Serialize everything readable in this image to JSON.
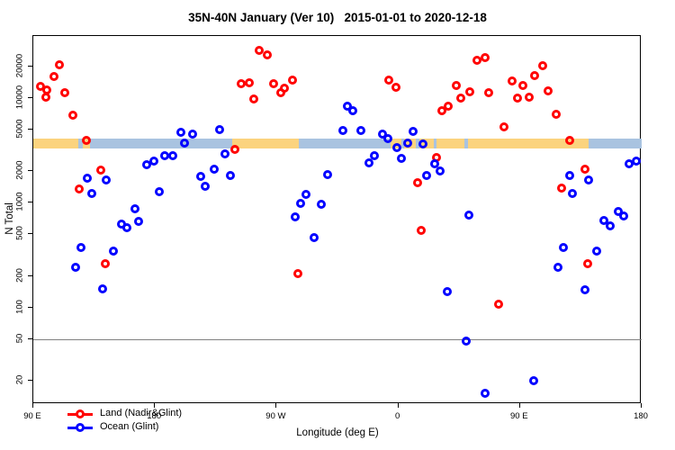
{
  "title": "35N-40N January (Ver 10)   2015-01-01 to 2020-12-18",
  "chart_data": {
    "type": "scatter",
    "title": "35N-40N January (Ver 10)   2015-01-01 to 2020-12-18",
    "xlabel": "Longitude (deg E)",
    "ylabel": "N Total",
    "x_axis": {
      "min": 90,
      "max": 540,
      "note": "longitude axis spans 450 deg eastward starting at 90E, wrapping through 180, 90W, 0, 90E to 180",
      "ticks": [
        {
          "value": 90,
          "label": "90 E"
        },
        {
          "value": 180,
          "label": "180"
        },
        {
          "value": 270,
          "label": "90 W"
        },
        {
          "value": 360,
          "label": "0"
        },
        {
          "value": 450,
          "label": "90 E"
        },
        {
          "value": 540,
          "label": "180"
        }
      ]
    },
    "y_axis": {
      "scale": "log",
      "ylim": [
        11.9,
        39200
      ],
      "ticks": [
        20,
        50,
        100,
        200,
        500,
        1000,
        2000,
        5000,
        10000,
        20000
      ]
    },
    "reference_line": {
      "y": 50,
      "color": "#808080"
    },
    "surface_strip": {
      "description": "land/ocean map strip drawn across plot near N=3400",
      "land_color": "#FBD37E",
      "ocean_color": "#A9C3E0",
      "segments": [
        {
          "type": "land",
          "from": 90,
          "to": 123
        },
        {
          "type": "ocean",
          "from": 123,
          "to": 126.5
        },
        {
          "type": "land",
          "from": 126.5,
          "to": 132
        },
        {
          "type": "ocean",
          "from": 132,
          "to": 237
        },
        {
          "type": "land",
          "from": 237,
          "to": 286.5
        },
        {
          "type": "ocean",
          "from": 286.5,
          "to": 354
        },
        {
          "type": "land",
          "from": 354,
          "to": 362
        },
        {
          "type": "ocean",
          "from": 362,
          "to": 364.5
        },
        {
          "type": "land",
          "from": 364.5,
          "to": 373
        },
        {
          "type": "ocean",
          "from": 373,
          "to": 375.5
        },
        {
          "type": "land",
          "from": 375.5,
          "to": 386
        },
        {
          "type": "ocean",
          "from": 386,
          "to": 388
        },
        {
          "type": "land",
          "from": 388,
          "to": 409
        },
        {
          "type": "ocean",
          "from": 409,
          "to": 411.5
        },
        {
          "type": "land",
          "from": 411.5,
          "to": 501
        },
        {
          "type": "ocean",
          "from": 501,
          "to": 540
        }
      ]
    },
    "series": [
      {
        "name": "Land (Nadir&Glint)",
        "color": "#FF0000",
        "points": [
          [
            109,
            21000
          ],
          [
            105,
            16100
          ],
          [
            95,
            12900
          ],
          [
            100,
            11900
          ],
          [
            99,
            10200
          ],
          [
            113,
            11300
          ],
          [
            119,
            6900
          ],
          [
            129,
            3950
          ],
          [
            140,
            2050
          ],
          [
            124,
            1360
          ],
          [
            143,
            260
          ],
          [
            257,
            28600
          ],
          [
            263,
            25900
          ],
          [
            244,
            13700
          ],
          [
            250,
            14000
          ],
          [
            268,
            13700
          ],
          [
            276,
            12400
          ],
          [
            273,
            11300
          ],
          [
            282,
            14900
          ],
          [
            253,
            9800
          ],
          [
            239,
            3240
          ],
          [
            286,
            210
          ],
          [
            374,
            1560
          ],
          [
            377,
            545
          ],
          [
            388,
            2700
          ],
          [
            392,
            7600
          ],
          [
            397,
            8400
          ],
          [
            403,
            13200
          ],
          [
            406,
            10000
          ],
          [
            413,
            11500
          ],
          [
            418,
            23000
          ],
          [
            424,
            24400
          ],
          [
            353,
            14900
          ],
          [
            358,
            12700
          ],
          [
            427,
            11300
          ],
          [
            434,
            108
          ],
          [
            438,
            5300
          ],
          [
            467,
            20500
          ],
          [
            461,
            16400
          ],
          [
            444,
            14600
          ],
          [
            452,
            13200
          ],
          [
            457,
            10200
          ],
          [
            448,
            10000
          ],
          [
            471,
            11700
          ],
          [
            477,
            7000
          ],
          [
            481,
            1380
          ],
          [
            487,
            3950
          ],
          [
            498,
            2100
          ],
          [
            500,
            260
          ]
        ]
      },
      {
        "name": "Ocean (Glint)",
        "color": "#0000FF",
        "points": [
          [
            199,
            4700
          ],
          [
            208,
            4500
          ],
          [
            202,
            3700
          ],
          [
            187,
            2820
          ],
          [
            193,
            2820
          ],
          [
            179,
            2500
          ],
          [
            174,
            2310
          ],
          [
            130,
            1720
          ],
          [
            144,
            1650
          ],
          [
            133,
            1230
          ],
          [
            183,
            1280
          ],
          [
            165,
            880
          ],
          [
            168,
            665
          ],
          [
            155,
            625
          ],
          [
            159,
            580
          ],
          [
            125,
            375
          ],
          [
            149,
            345
          ],
          [
            121,
            240
          ],
          [
            141,
            150
          ],
          [
            228,
            5000
          ],
          [
            232,
            2930
          ],
          [
            224,
            2100
          ],
          [
            214,
            1790
          ],
          [
            217,
            1440
          ],
          [
            236,
            1820
          ],
          [
            308,
            1860
          ],
          [
            292,
            1200
          ],
          [
            288,
            990
          ],
          [
            303,
            970
          ],
          [
            284,
            735
          ],
          [
            298,
            465
          ],
          [
            322,
            8400
          ],
          [
            326,
            7600
          ],
          [
            319,
            4900
          ],
          [
            332,
            4900
          ],
          [
            348,
            4500
          ],
          [
            352,
            4100
          ],
          [
            371,
            4800
          ],
          [
            359,
            3370
          ],
          [
            367,
            3700
          ],
          [
            378,
            3650
          ],
          [
            362,
            2660
          ],
          [
            342,
            2820
          ],
          [
            338,
            2400
          ],
          [
            387,
            2360
          ],
          [
            391,
            2010
          ],
          [
            381,
            1820
          ],
          [
            412,
            765
          ],
          [
            410,
            48
          ],
          [
            424,
            15
          ],
          [
            460,
            20
          ],
          [
            396,
            142
          ],
          [
            531,
            2360
          ],
          [
            536,
            2500
          ],
          [
            487,
            1820
          ],
          [
            501,
            1650
          ],
          [
            489,
            1230
          ],
          [
            512,
            680
          ],
          [
            517,
            600
          ],
          [
            523,
            830
          ],
          [
            527,
            740
          ],
          [
            482,
            370
          ],
          [
            507,
            345
          ],
          [
            478,
            240
          ],
          [
            498,
            148
          ]
        ]
      }
    ],
    "legend": {
      "position": "bottom-left"
    }
  }
}
